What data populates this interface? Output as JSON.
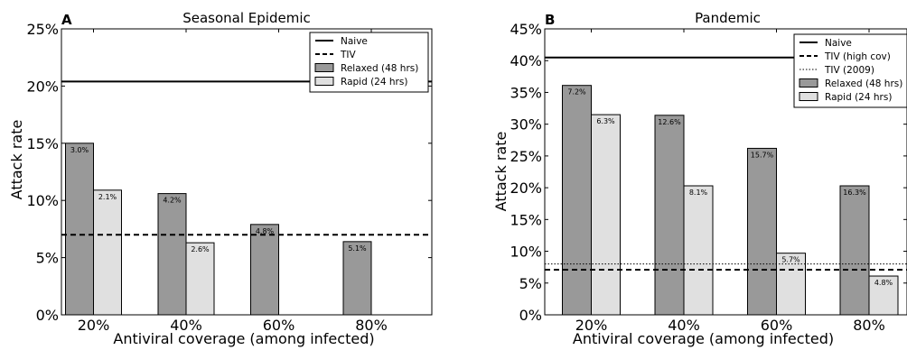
{
  "chart_data": [
    {
      "type": "bar",
      "panel_label": "A",
      "title": "Seasonal Epidemic",
      "xlabel": "Antiviral coverage (among infected)",
      "ylabel": "",
      "categories": [
        "20%",
        "40%",
        "60%",
        "80%"
      ],
      "ylim": [
        0,
        25
      ],
      "yticks": [
        "0%",
        "5%",
        "10%",
        "15%",
        "20%",
        "25%"
      ],
      "grid": false,
      "legend_position": "top-right",
      "series": [
        {
          "name": "Relaxed (48 hrs)",
          "color": "#999999",
          "values": [
            15.0,
            10.6,
            7.9,
            6.4
          ],
          "labels": [
            "3.0%",
            "4.2%",
            "4.8%",
            "5.1%"
          ]
        },
        {
          "name": "Rapid (24 hrs)",
          "color": "#e0e0e0",
          "values": [
            10.9,
            6.3,
            0,
            0
          ],
          "labels": [
            "2.1%",
            "2.6%",
            "",
            ""
          ]
        }
      ],
      "reference_lines": [
        {
          "name": "Naive",
          "value": 20.4,
          "style": "solid"
        },
        {
          "name": "TIV",
          "value": 7.0,
          "style": "dashed"
        }
      ],
      "legend": [
        {
          "label": "Naive",
          "kind": "solid"
        },
        {
          "label": "TIV",
          "kind": "dashed"
        },
        {
          "label": "Relaxed (48 hrs)",
          "kind": "patch",
          "color": "#999999"
        },
        {
          "label": "Rapid (24 hrs)",
          "kind": "patch",
          "color": "#e0e0e0"
        }
      ]
    },
    {
      "type": "bar",
      "panel_label": "B",
      "title": "Pandemic",
      "xlabel": "Antiviral coverage (among infected)",
      "ylabel": "Attack rate",
      "categories": [
        "20%",
        "40%",
        "60%",
        "80%"
      ],
      "ylim": [
        0,
        45
      ],
      "yticks": [
        "0%",
        "5%",
        "10%",
        "15%",
        "20%",
        "25%",
        "30%",
        "35%",
        "40%",
        "45%"
      ],
      "grid": false,
      "legend_position": "top-right",
      "series": [
        {
          "name": "Relaxed (48 hrs)",
          "color": "#999999",
          "values": [
            36.1,
            31.4,
            26.2,
            20.3
          ],
          "labels": [
            "7.2%",
            "12.6%",
            "15.7%",
            "16.3%"
          ]
        },
        {
          "name": "Rapid (24 hrs)",
          "color": "#e0e0e0",
          "values": [
            31.5,
            20.3,
            9.7,
            6.1
          ],
          "labels": [
            "6.3%",
            "8.1%",
            "5.7%",
            "4.8%"
          ]
        }
      ],
      "reference_lines": [
        {
          "name": "Naive",
          "value": 40.5,
          "style": "solid"
        },
        {
          "name": "TIV (high cov)",
          "value": 7.1,
          "style": "dashed"
        },
        {
          "name": "TIV (2009)",
          "value": 8.0,
          "style": "dotted"
        }
      ],
      "legend": [
        {
          "label": "Naive",
          "kind": "solid"
        },
        {
          "label": "TIV (high cov)",
          "kind": "dashed"
        },
        {
          "label": "TIV (2009)",
          "kind": "dotted"
        },
        {
          "label": "Relaxed (48 hrs)",
          "kind": "patch",
          "color": "#999999"
        },
        {
          "label": "Rapid (24 hrs)",
          "kind": "patch",
          "color": "#e0e0e0"
        }
      ]
    }
  ],
  "shared_ylabel": "Attack rate"
}
